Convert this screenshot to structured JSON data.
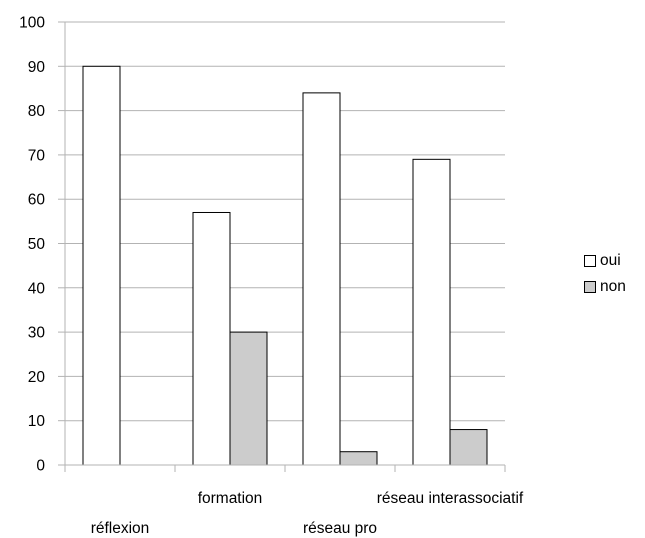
{
  "chart_data": {
    "type": "bar",
    "categories": [
      "réflexion",
      "formation",
      "réseau pro",
      "réseau interassociatif"
    ],
    "series": [
      {
        "name": "oui",
        "values": [
          90,
          57,
          84,
          69
        ],
        "color": "#ffffff"
      },
      {
        "name": "non",
        "values": [
          0,
          30,
          3,
          8
        ],
        "color": "#cccccc"
      }
    ],
    "ylim": [
      0,
      100
    ],
    "yticks": [
      0,
      10,
      20,
      30,
      40,
      50,
      60,
      70,
      80,
      90,
      100
    ],
    "grid": true,
    "legend": "right",
    "title": "",
    "xlabel": "",
    "ylabel": ""
  }
}
